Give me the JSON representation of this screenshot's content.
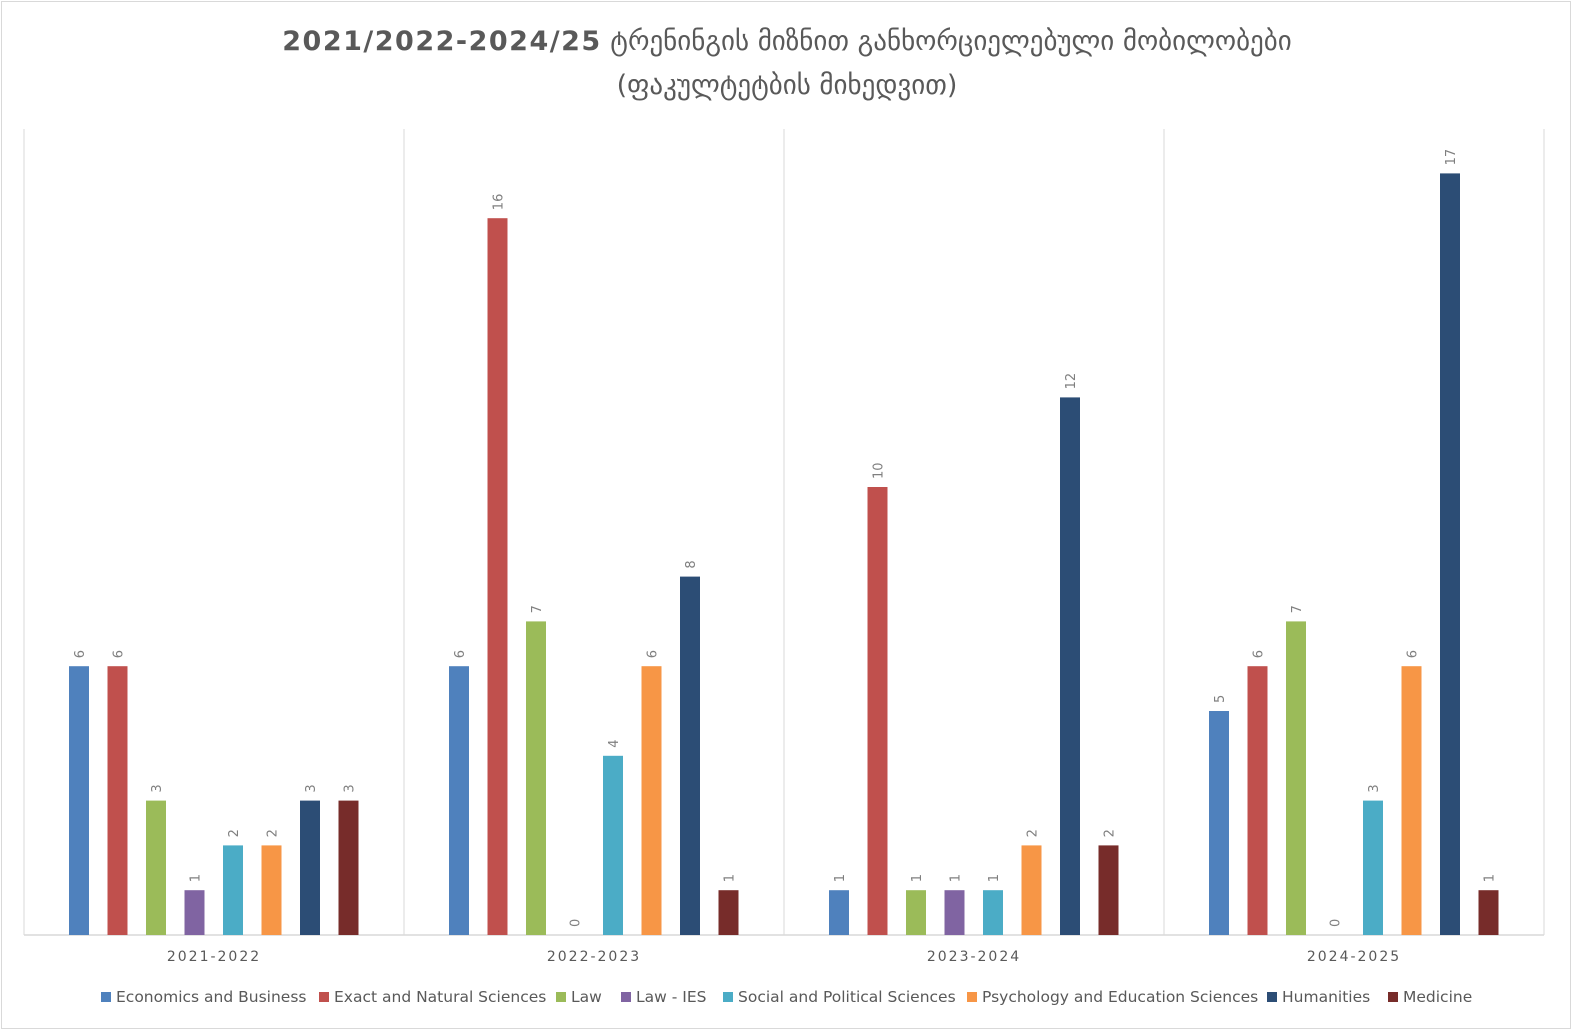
{
  "chart_data": {
    "type": "bar",
    "title_bold": "2021/2022-2024/25",
    "title_rest": " ტრენინგის მიზნით განხორციელებული მობილობები",
    "subtitle": "(ფაკულტეტბის მიხედვით)",
    "categories": [
      "2021-2022",
      "2022-2023",
      "2023-2024",
      "2024-2025"
    ],
    "series": [
      {
        "name": "Economics and Business",
        "color": "#4f81bd",
        "values": [
          6,
          6,
          1,
          5
        ]
      },
      {
        "name": "Exact and Natural Sciences",
        "color": "#c0504d",
        "values": [
          6,
          16,
          10,
          6
        ]
      },
      {
        "name": "Law",
        "color": "#9bbb59",
        "values": [
          3,
          7,
          1,
          7
        ]
      },
      {
        "name": "Law - IES",
        "color": "#8064a2",
        "values": [
          1,
          0,
          1,
          0
        ]
      },
      {
        "name": "Social and Political Sciences",
        "color": "#4bacc6",
        "values": [
          2,
          4,
          1,
          3
        ]
      },
      {
        "name": "Psychology and Education Sciences",
        "color": "#f79646",
        "values": [
          2,
          6,
          2,
          6
        ]
      },
      {
        "name": "Humanities",
        "color": "#2c4d75",
        "values": [
          3,
          8,
          12,
          17
        ]
      },
      {
        "name": "Medicine",
        "color": "#772c2a",
        "values": [
          3,
          1,
          2,
          1
        ]
      }
    ],
    "ylim": [
      0,
      18
    ],
    "grid": false,
    "legend_position": "bottom"
  }
}
